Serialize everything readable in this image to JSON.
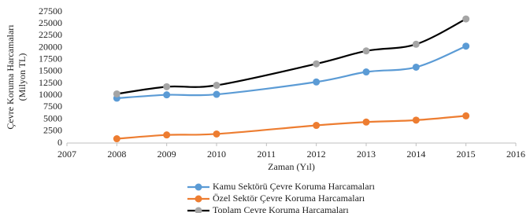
{
  "chart_data": {
    "type": "line",
    "y_label": [
      "Çevre Koruma Harcamaları",
      "(Milyon TL)"
    ],
    "x_label": "Zaman (Yıl)",
    "x": [
      2008,
      2009,
      2010,
      2012,
      2013,
      2014,
      2015
    ],
    "series": [
      {
        "name": "Kamu Sektörü Çevre Koruma Harcamaları",
        "color": "#5b9bd5",
        "marker_color": "#5b9bd5",
        "values": [
          9400,
          10100,
          10200,
          12800,
          14900,
          15900,
          20300
        ]
      },
      {
        "name": "Özel Sektör Çevre Koruma Harcamaları",
        "color": "#ed7d31",
        "marker_color": "#ed7d31",
        "values": [
          900,
          1700,
          1900,
          3700,
          4400,
          4800,
          5700
        ]
      },
      {
        "name": "Toplam Çevre Koruma Harcamaları",
        "color": "#000000",
        "marker_color": "#a5a5a5",
        "values": [
          10300,
          11800,
          12100,
          16600,
          19300,
          20700,
          26000
        ]
      }
    ],
    "xlim": [
      2007,
      2016
    ],
    "xticks": [
      2007,
      2008,
      2009,
      2010,
      2011,
      2012,
      2013,
      2014,
      2015,
      2016
    ],
    "ylim": [
      0,
      27500
    ],
    "yticks": [
      0,
      2500,
      5000,
      7500,
      10000,
      12500,
      15000,
      17500,
      20000,
      22500,
      25000,
      27500
    ],
    "grid": false,
    "legend": "bottom"
  }
}
